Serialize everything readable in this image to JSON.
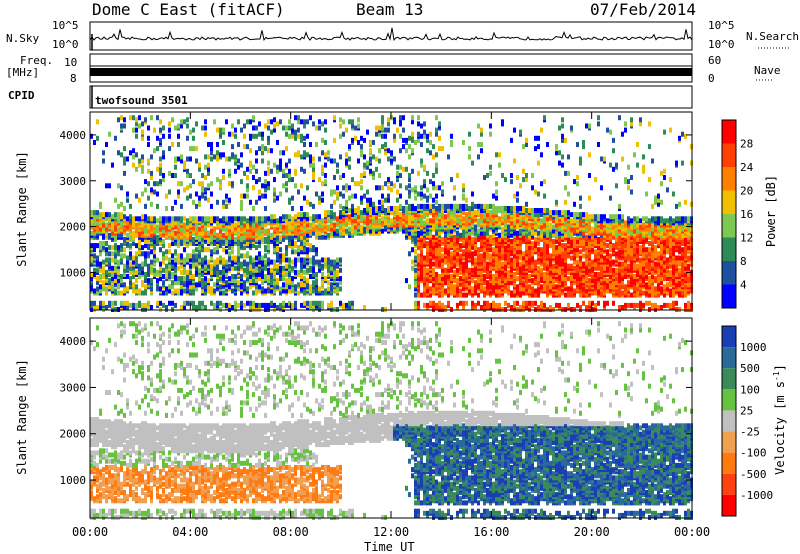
{
  "header": {
    "title": "Dome C East (fitACF)",
    "beam": "Beam 13",
    "date": "07/Feb/2014"
  },
  "top_panels": {
    "nsky_label": "N.Sky",
    "nsky_ticks": [
      "10^5",
      "10^0"
    ],
    "nsearch_label": "N.Search",
    "freq_label_1": "Freq.",
    "freq_label_2": "[MHz]",
    "freq_ticks": [
      "10",
      "8"
    ],
    "nave_label": "Nave",
    "nave_ticks": [
      "60",
      "0"
    ],
    "cpid_label": "CPID",
    "cpid_value": "twofsound 3501"
  },
  "chart_data": [
    {
      "type": "heatmap",
      "name": "Power",
      "ylabel": "Slant Range [km]",
      "yticks": [
        "4000",
        "3000",
        "2000",
        "1000"
      ],
      "ylim": [
        180,
        4500
      ],
      "colorbar_label": "Power [dB]",
      "colorbar_ticks": [
        "28",
        "24",
        "20",
        "16",
        "12",
        "8",
        "4"
      ],
      "colorbar_colors": [
        "#ff0000",
        "#ff4000",
        "#ff8000",
        "#f0c000",
        "#7cc850",
        "#2e8b57",
        "#1f4fa0",
        "#0000ff"
      ]
    },
    {
      "type": "heatmap",
      "name": "Velocity",
      "ylabel": "Slant Range [km]",
      "yticks": [
        "4000",
        "3000",
        "2000",
        "1000"
      ],
      "ylim": [
        180,
        4500
      ],
      "colorbar_label": "Velocity [m s",
      "colorbar_sup": "-1",
      "colorbar_ticks": [
        "1000",
        "500",
        "100",
        "25",
        "-25",
        "-100",
        "-500",
        "-1000"
      ],
      "colorbar_colors": [
        "#1a3fb5",
        "#2a6a9a",
        "#3a8a5a",
        "#66c240",
        "#c0c0c0",
        "#f0a050",
        "#ff7a10",
        "#ff4010",
        "#ff0000"
      ]
    }
  ],
  "xaxis": {
    "label": "Time UT",
    "ticks": [
      "00:00",
      "04:00",
      "08:00",
      "12:00",
      "16:00",
      "20:00",
      "00:00"
    ]
  }
}
